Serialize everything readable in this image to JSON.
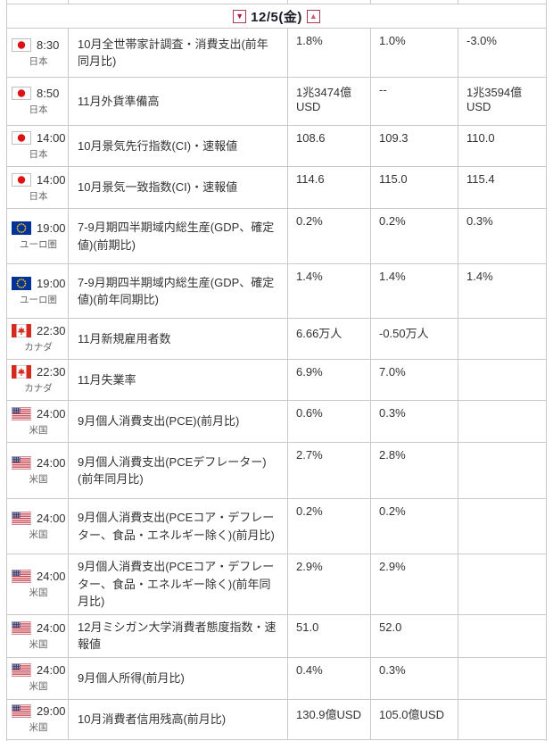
{
  "date_header": {
    "label": "12/5(金)",
    "prev_icon": "▼",
    "next_icon": "▲"
  },
  "colors": {
    "border": "#c9c9c9",
    "nav_button_border": "#a63a52",
    "down_arrow": "#c01337",
    "up_arrow": "#d45a73",
    "text": "#333333",
    "country_text": "#666666",
    "japan_red": "#dd1111",
    "eu_blue": "#003399",
    "eu_star_yellow": "#ffcc00",
    "canada_red": "#d52b1e",
    "us_red": "#bf2333",
    "us_blue": "#3a3b6e"
  },
  "events": [
    {
      "time": "8:30",
      "country": "日本",
      "flag": "japan",
      "event": "10月全世帯家計調査・消費支出(前年同月比)",
      "values": [
        "1.8%",
        "1.0%",
        "-3.0%"
      ]
    },
    {
      "time": "8:50",
      "country": "日本",
      "flag": "japan",
      "event": "11月外貨準備高",
      "values": [
        "1兆3474億USD",
        "--",
        "1兆3594億USD"
      ]
    },
    {
      "time": "14:00",
      "country": "日本",
      "flag": "japan",
      "event": "10月景気先行指数(CI)・速報値",
      "values": [
        "108.6",
        "109.3",
        "110.0"
      ]
    },
    {
      "time": "14:00",
      "country": "日本",
      "flag": "japan",
      "event": "10月景気一致指数(CI)・速報値",
      "values": [
        "114.6",
        "115.0",
        "115.4"
      ]
    },
    {
      "time": "19:00",
      "country": "ユーロ圏",
      "flag": "eu",
      "event": "7-9月期四半期域内総生産(GDP、確定値)(前期比)",
      "values": [
        "0.2%",
        "0.2%",
        "0.3%"
      ]
    },
    {
      "time": "19:00",
      "country": "ユーロ圏",
      "flag": "eu",
      "event": "7-9月期四半期域内総生産(GDP、確定値)(前年同期比)",
      "values": [
        "1.4%",
        "1.4%",
        "1.4%"
      ]
    },
    {
      "time": "22:30",
      "country": "カナダ",
      "flag": "canada",
      "event": "11月新規雇用者数",
      "values": [
        "6.66万人",
        "-0.50万人",
        ""
      ]
    },
    {
      "time": "22:30",
      "country": "カナダ",
      "flag": "canada",
      "event": "11月失業率",
      "values": [
        "6.9%",
        "7.0%",
        ""
      ]
    },
    {
      "time": "24:00",
      "country": "米国",
      "flag": "us",
      "event": "9月個人消費支出(PCE)(前月比)",
      "values": [
        "0.6%",
        "0.3%",
        ""
      ]
    },
    {
      "time": "24:00",
      "country": "米国",
      "flag": "us",
      "event": "9月個人消費支出(PCEデフレーター)(前年同月比)",
      "values": [
        "2.7%",
        "2.8%",
        ""
      ]
    },
    {
      "time": "24:00",
      "country": "米国",
      "flag": "us",
      "event": "9月個人消費支出(PCEコア・デフレーター、食品・エネルギー除く)(前月比)",
      "values": [
        "0.2%",
        "0.2%",
        ""
      ]
    },
    {
      "time": "24:00",
      "country": "米国",
      "flag": "us",
      "event": "9月個人消費支出(PCEコア・デフレーター、食品・エネルギー除く)(前年同月比)",
      "values": [
        "2.9%",
        "2.9%",
        ""
      ]
    },
    {
      "time": "24:00",
      "country": "米国",
      "flag": "us",
      "event": "12月ミシガン大学消費者態度指数・速報値",
      "values": [
        "51.0",
        "52.0",
        ""
      ]
    },
    {
      "time": "24:00",
      "country": "米国",
      "flag": "us",
      "event": "9月個人所得(前月比)",
      "values": [
        "0.4%",
        "0.3%",
        ""
      ]
    },
    {
      "time": "29:00",
      "country": "米国",
      "flag": "us",
      "event": "10月消費者信用残高(前月比)",
      "values": [
        "130.9億USD",
        "105.0億USD",
        ""
      ]
    }
  ]
}
